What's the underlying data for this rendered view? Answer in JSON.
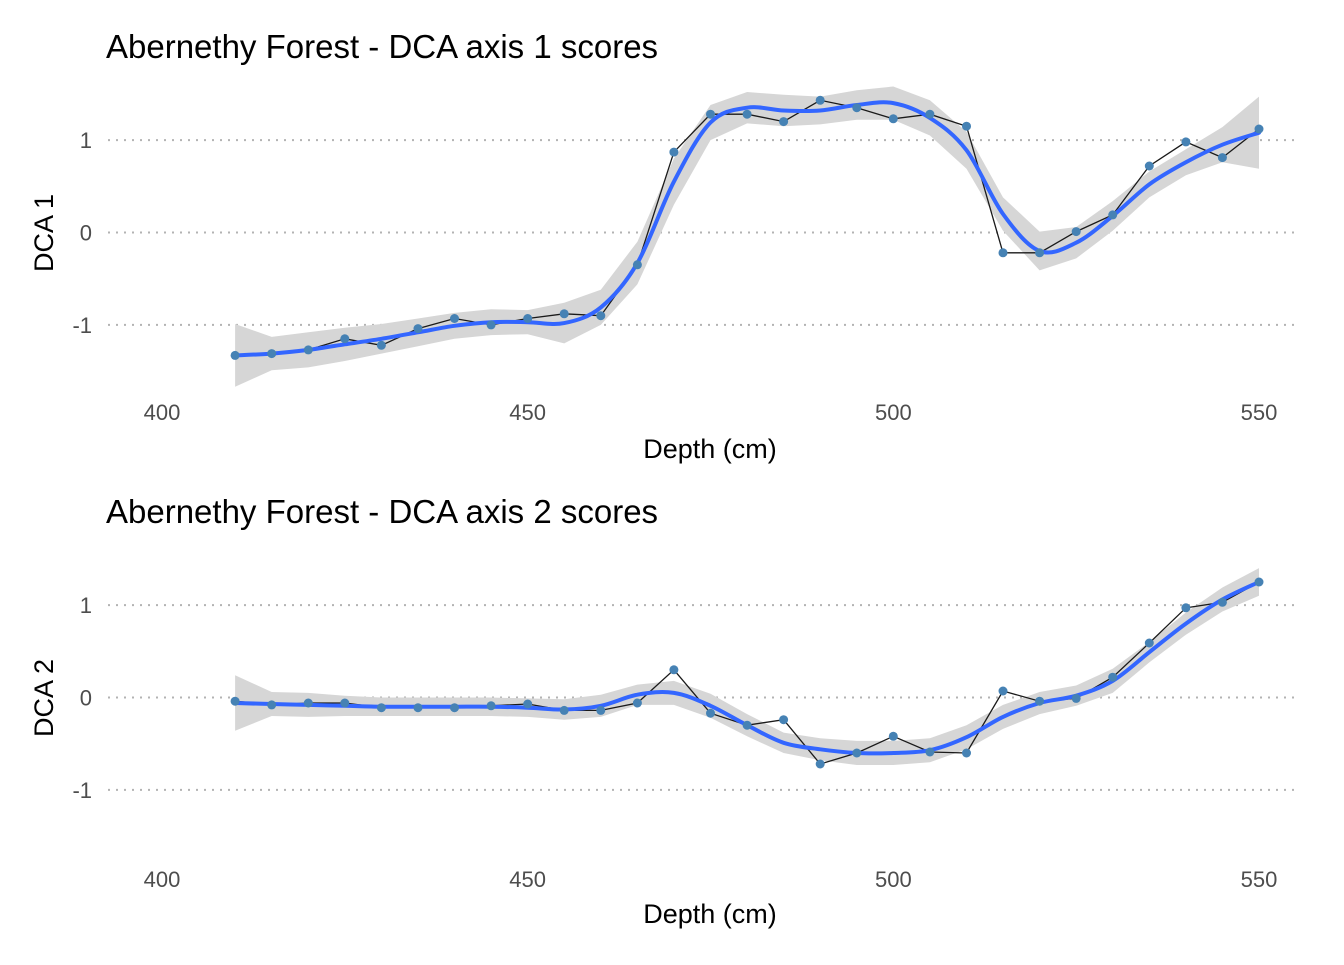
{
  "chart_data": [
    {
      "type": "line",
      "title": "Abernethy Forest - DCA axis 1 scores",
      "xlabel": "Depth (cm)",
      "ylabel": "DCA 1",
      "xlim": [
        392,
        1002
      ],
      "ylim": [
        -1.65,
        1.65
      ],
      "xticks": [
        400,
        450,
        500,
        550
      ],
      "yticks": [
        -1,
        0,
        1
      ],
      "grid": "horizontal dotted",
      "legend": "none",
      "colors": {
        "points": "#4682b4",
        "line": "#1a1a1a",
        "smooth": "#3366ff",
        "ribbon": "#d6d6d6"
      },
      "series": [
        {
          "x": [
            410,
            415,
            420,
            425,
            430,
            435,
            440,
            445,
            450,
            455,
            460,
            465,
            470,
            475,
            480,
            485,
            490,
            495,
            500,
            505,
            510,
            515,
            520,
            525,
            530,
            535,
            540,
            545,
            550
          ],
          "values": [
            -1.33,
            -1.31,
            -1.27,
            -1.15,
            -1.22,
            -1.04,
            -0.93,
            -1.0,
            -0.93,
            -0.88,
            -0.9,
            -0.35,
            0.87,
            1.28,
            1.28,
            1.2,
            1.43,
            1.35,
            1.23,
            1.28,
            1.15,
            -0.22,
            -0.22,
            0.01,
            0.19,
            0.72,
            0.98,
            0.81,
            1.12
          ]
        }
      ],
      "smooth": {
        "x": [
          410,
          415,
          420,
          425,
          430,
          435,
          440,
          445,
          450,
          455,
          460,
          465,
          470,
          475,
          480,
          485,
          490,
          495,
          500,
          505,
          510,
          515,
          520,
          525,
          530,
          535,
          540,
          545,
          550
        ],
        "values": [
          -1.33,
          -1.31,
          -1.27,
          -1.21,
          -1.15,
          -1.08,
          -1.01,
          -0.97,
          -0.97,
          -0.98,
          -0.81,
          -0.33,
          0.55,
          1.19,
          1.35,
          1.32,
          1.32,
          1.38,
          1.4,
          1.24,
          0.89,
          0.2,
          -0.2,
          -0.11,
          0.18,
          0.52,
          0.76,
          0.95,
          1.08
        ],
        "lower": [
          -1.67,
          -1.49,
          -1.46,
          -1.39,
          -1.31,
          -1.23,
          -1.15,
          -1.11,
          -1.1,
          -1.2,
          -1.0,
          -0.56,
          0.3,
          1.0,
          1.18,
          1.15,
          1.17,
          1.22,
          1.22,
          1.05,
          0.69,
          0.02,
          -0.41,
          -0.28,
          0.02,
          0.38,
          0.62,
          0.76,
          0.69
        ]
      }
    },
    {
      "type": "line",
      "title": "Abernethy Forest - DCA axis 2 scores",
      "xlabel": "Depth (cm)",
      "ylabel": "DCA 2",
      "xlim": [
        392,
        1002
      ],
      "ylim": [
        -1.65,
        1.65
      ],
      "xticks": [
        400,
        450,
        500,
        550
      ],
      "yticks": [
        -1,
        0,
        1
      ],
      "grid": "horizontal dotted",
      "legend": "none",
      "colors": {
        "points": "#4682b4",
        "line": "#1a1a1a",
        "smooth": "#3366ff",
        "ribbon": "#d6d6d6"
      },
      "series": [
        {
          "x": [
            410,
            415,
            420,
            425,
            430,
            435,
            440,
            445,
            450,
            455,
            460,
            465,
            470,
            475,
            480,
            485,
            490,
            495,
            500,
            505,
            510,
            515,
            520,
            525,
            530,
            535,
            540,
            545,
            550
          ],
          "values": [
            -0.04,
            -0.08,
            -0.06,
            -0.06,
            -0.11,
            -0.11,
            -0.11,
            -0.09,
            -0.07,
            -0.14,
            -0.14,
            -0.06,
            0.3,
            -0.17,
            -0.3,
            -0.24,
            -0.72,
            -0.6,
            -0.42,
            -0.59,
            -0.6,
            0.07,
            -0.04,
            -0.01,
            0.22,
            0.59,
            0.97,
            1.03,
            1.25
          ]
        }
      ],
      "smooth": {
        "x": [
          410,
          415,
          420,
          425,
          430,
          435,
          440,
          445,
          450,
          455,
          460,
          465,
          470,
          475,
          480,
          485,
          490,
          495,
          500,
          505,
          510,
          515,
          520,
          525,
          530,
          535,
          540,
          545,
          550
        ],
        "values": [
          -0.06,
          -0.07,
          -0.08,
          -0.09,
          -0.1,
          -0.1,
          -0.1,
          -0.1,
          -0.11,
          -0.13,
          -0.09,
          0.03,
          0.05,
          -0.09,
          -0.3,
          -0.49,
          -0.56,
          -0.6,
          -0.6,
          -0.57,
          -0.43,
          -0.21,
          -0.06,
          0.02,
          0.18,
          0.49,
          0.8,
          1.06,
          1.25
        ],
        "lower": [
          -0.36,
          -0.2,
          -0.21,
          -0.2,
          -0.2,
          -0.2,
          -0.2,
          -0.2,
          -0.21,
          -0.24,
          -0.21,
          -0.08,
          -0.08,
          -0.22,
          -0.42,
          -0.6,
          -0.68,
          -0.73,
          -0.73,
          -0.7,
          -0.56,
          -0.34,
          -0.18,
          -0.09,
          0.05,
          0.38,
          0.68,
          0.93,
          1.1
        ]
      }
    }
  ]
}
